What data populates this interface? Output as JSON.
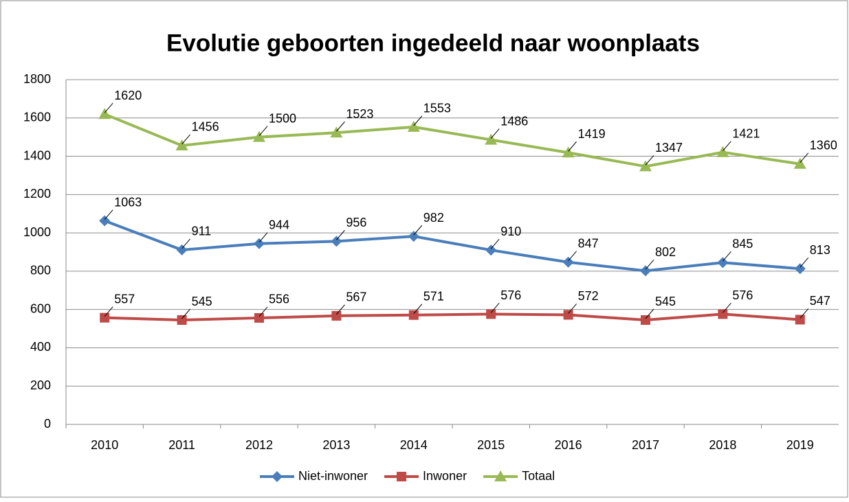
{
  "chart_data": {
    "type": "line",
    "title": "Evolutie geboorten ingedeeld naar woonplaats",
    "categories": [
      "2010",
      "2011",
      "2012",
      "2013",
      "2014",
      "2015",
      "2016",
      "2017",
      "2018",
      "2019"
    ],
    "series": [
      {
        "name": "Niet-inwoner",
        "color": "#4a7ebb",
        "marker": "diamond",
        "values": [
          1063,
          911,
          944,
          956,
          982,
          910,
          847,
          802,
          845,
          813
        ]
      },
      {
        "name": "Inwoner",
        "color": "#be4b48",
        "marker": "square",
        "values": [
          557,
          545,
          556,
          567,
          571,
          576,
          572,
          545,
          576,
          547
        ]
      },
      {
        "name": "Totaal",
        "color": "#98b954",
        "marker": "triangle",
        "values": [
          1620,
          1456,
          1500,
          1523,
          1553,
          1486,
          1419,
          1347,
          1421,
          1360
        ]
      }
    ],
    "ylim": [
      0,
      1800
    ],
    "yticks": [
      0,
      200,
      400,
      600,
      800,
      1000,
      1200,
      1400,
      1600,
      1800
    ],
    "grid": true,
    "legend": "bottom"
  }
}
